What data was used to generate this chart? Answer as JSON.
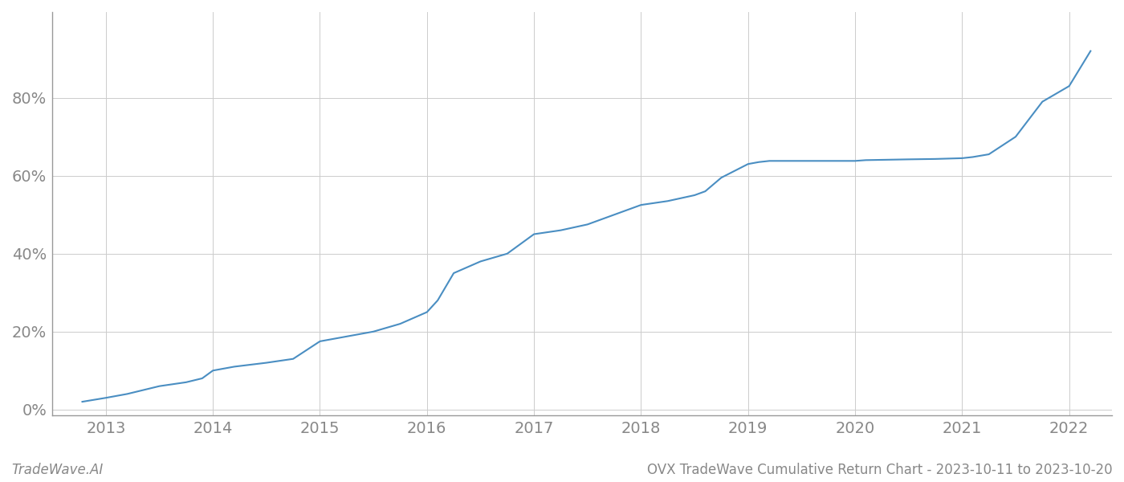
{
  "title": "OVX TradeWave Cumulative Return Chart - 2023-10-11 to 2023-10-20",
  "watermark": "TradeWave.AI",
  "line_color": "#4a8ec2",
  "background_color": "#ffffff",
  "grid_color": "#cccccc",
  "x_values": [
    2012.78,
    2013.0,
    2013.2,
    2013.5,
    2013.75,
    2013.9,
    2014.0,
    2014.2,
    2014.5,
    2014.75,
    2015.0,
    2015.1,
    2015.2,
    2015.5,
    2015.75,
    2016.0,
    2016.1,
    2016.25,
    2016.5,
    2016.75,
    2017.0,
    2017.25,
    2017.5,
    2017.75,
    2018.0,
    2018.25,
    2018.5,
    2018.6,
    2018.75,
    2019.0,
    2019.1,
    2019.2,
    2019.25,
    2019.5,
    2019.75,
    2020.0,
    2020.1,
    2020.5,
    2020.75,
    2021.0,
    2021.1,
    2021.25,
    2021.5,
    2021.75,
    2022.0,
    2022.2
  ],
  "y_values": [
    0.02,
    0.03,
    0.04,
    0.06,
    0.07,
    0.08,
    0.1,
    0.11,
    0.12,
    0.13,
    0.175,
    0.18,
    0.185,
    0.2,
    0.22,
    0.25,
    0.28,
    0.35,
    0.38,
    0.4,
    0.45,
    0.46,
    0.475,
    0.5,
    0.525,
    0.535,
    0.55,
    0.56,
    0.595,
    0.63,
    0.635,
    0.638,
    0.638,
    0.638,
    0.638,
    0.638,
    0.64,
    0.642,
    0.643,
    0.645,
    0.648,
    0.655,
    0.7,
    0.79,
    0.83,
    0.92
  ],
  "xlim": [
    2012.5,
    2022.4
  ],
  "ylim": [
    -0.015,
    1.02
  ],
  "yticks": [
    0.0,
    0.2,
    0.4,
    0.6,
    0.8
  ],
  "ytick_labels": [
    "0%",
    "20%",
    "40%",
    "60%",
    "80%"
  ],
  "xticks": [
    2013,
    2014,
    2015,
    2016,
    2017,
    2018,
    2019,
    2020,
    2021,
    2022
  ],
  "xtick_labels": [
    "2013",
    "2014",
    "2015",
    "2016",
    "2017",
    "2018",
    "2019",
    "2020",
    "2021",
    "2022"
  ],
  "line_width": 1.5,
  "tick_color": "#888888",
  "tick_fontsize": 14,
  "title_fontsize": 12,
  "watermark_fontsize": 12
}
